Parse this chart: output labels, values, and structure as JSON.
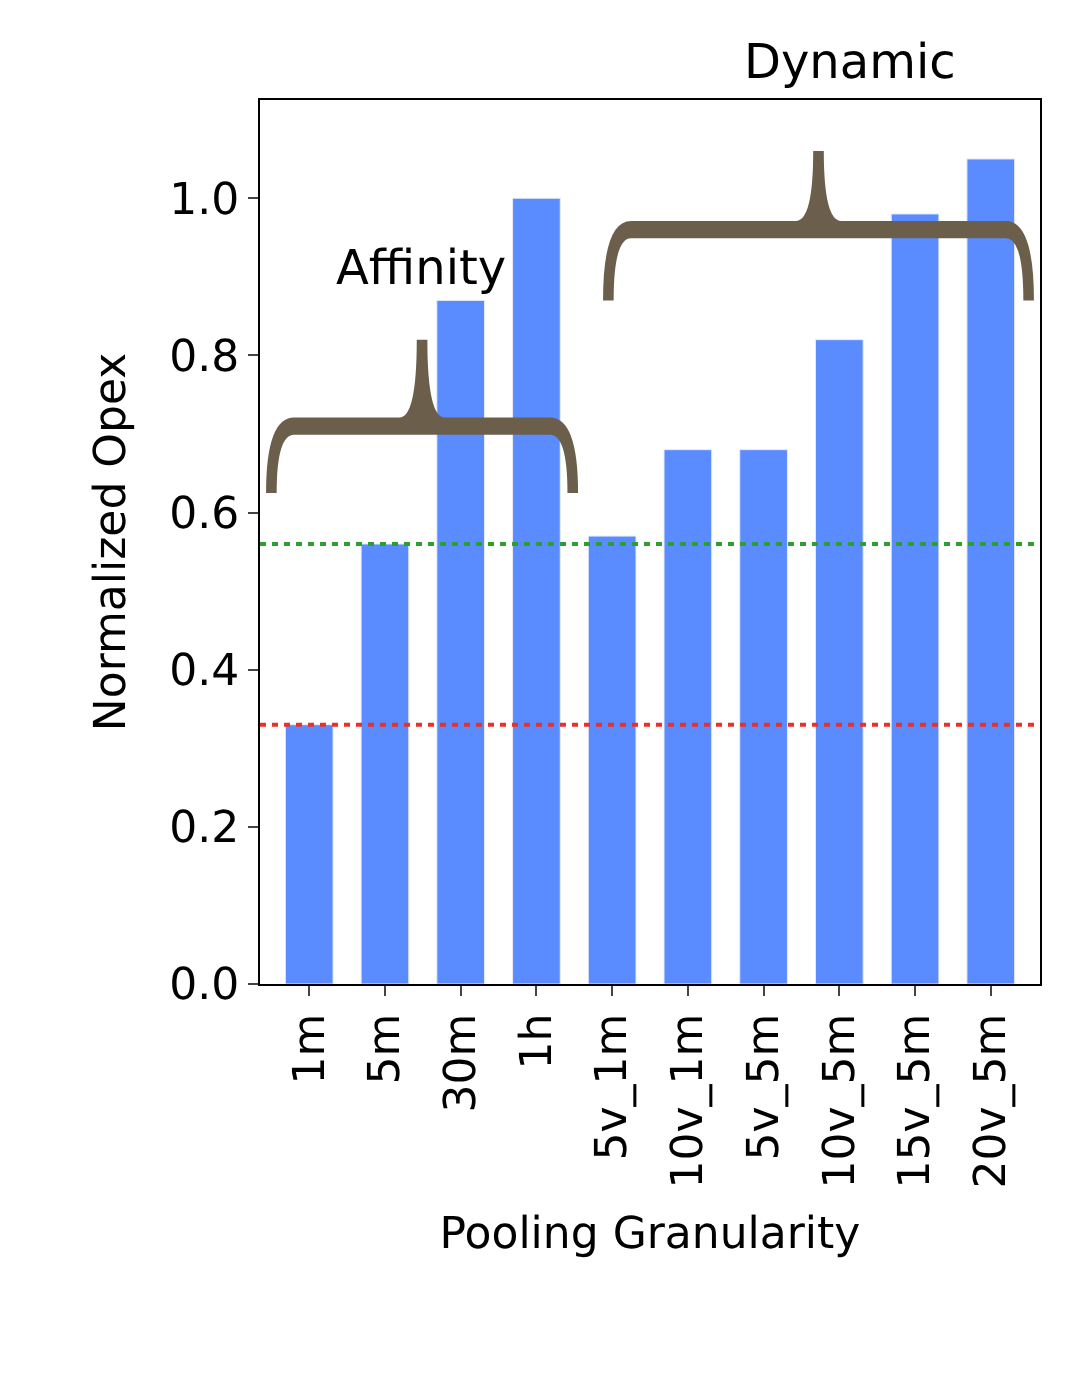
{
  "chart_data": {
    "type": "bar",
    "xlabel": "Pooling Granularity",
    "ylabel": "Normalized Opex",
    "categories": [
      "1m",
      "5m",
      "30m",
      "1h",
      "5v_1m",
      "10v_1m",
      "5v_5m",
      "10v_5m",
      "15v_5m",
      "20v_5m"
    ],
    "values": [
      0.33,
      0.56,
      0.87,
      1.0,
      0.57,
      0.68,
      0.68,
      0.82,
      0.98,
      1.05
    ],
    "color": "#5b8cff",
    "ylim": [
      0,
      1.125
    ],
    "yticks": [
      {
        "value": 0,
        "label": "0.0"
      },
      {
        "value": 0.2,
        "label": "0.2"
      },
      {
        "value": 0.4,
        "label": "0.4"
      },
      {
        "value": 0.6,
        "label": "0.6"
      },
      {
        "value": 0.8,
        "label": "0.8"
      },
      {
        "value": 1.0,
        "label": "1.0"
      }
    ],
    "ref_lines": [
      {
        "axis": "y",
        "value": 0.56,
        "color": "#2ca02c",
        "line_style": "dotted"
      },
      {
        "axis": "y",
        "value": 0.33,
        "color": "#e8312a",
        "line_style": "dotted"
      }
    ],
    "annotations": [
      "Affinity",
      "Dynamic"
    ],
    "grid": false
  }
}
